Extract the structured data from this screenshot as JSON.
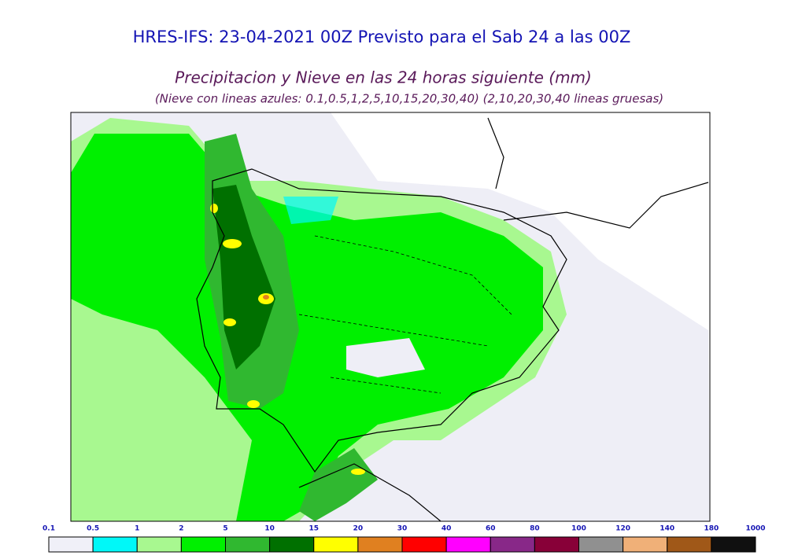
{
  "header": {
    "title": "HRES-IFS: 23-04-2021 00Z Previsto para el Sab 24 a las 00Z",
    "subtitle": "Precipitacion y Nieve en las 24 horas siguiente (mm)",
    "note": "(Nieve con lineas azules: 0.1,0.5,1,2,5,10,15,20,30,40)  (2,10,20,30,40 lineas gruesas)"
  },
  "legend": {
    "labels": [
      "0.1",
      "0.5",
      "1",
      "2",
      "5",
      "10",
      "15",
      "20",
      "30",
      "40",
      "60",
      "80",
      "100",
      "120",
      "140",
      "180",
      "1000"
    ],
    "colors": [
      "#f0f0f8",
      "#00f8f8",
      "#a8f890",
      "#00f000",
      "#30b830",
      "#007000",
      "#ffff00",
      "#e08020",
      "#ff0000",
      "#ff00ff",
      "#882888",
      "#880038",
      "#909090",
      "#f0b078",
      "#a05818",
      "#101010"
    ]
  }
}
